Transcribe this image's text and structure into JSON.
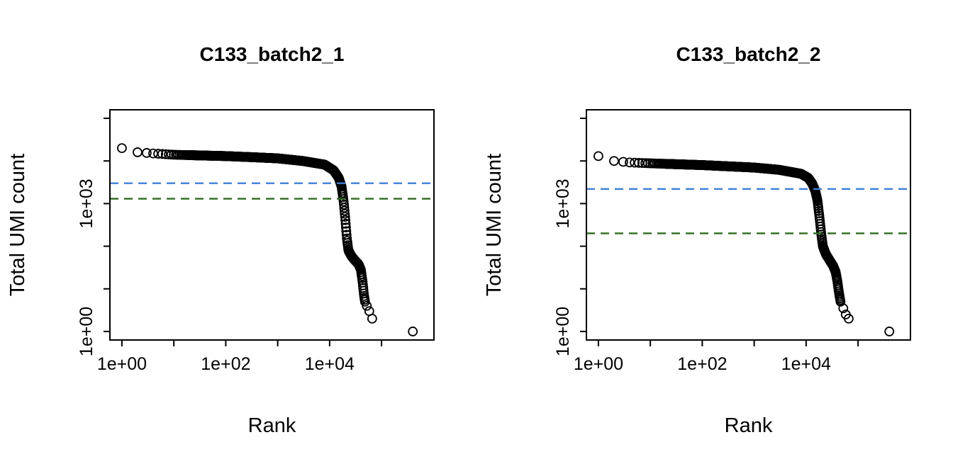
{
  "figure": {
    "background": "#ffffff",
    "description": "Two barcode-rank (knee) plots of Total UMI count versus Rank on log-log axes, each with a dashed blue knee threshold line and a dashed dark-green inflection threshold line."
  },
  "chart_data": [
    {
      "type": "scatter",
      "title": "C133_batch2_1",
      "xlabel": "Rank",
      "ylabel": "Total UMI count",
      "xscale": "log",
      "yscale": "log",
      "xlim": [
        1,
        600000
      ],
      "ylim": [
        1,
        100000
      ],
      "grid": false,
      "legend": "none",
      "x_tick_exponents": [
        0,
        1,
        2,
        3,
        4,
        5
      ],
      "y_tick_exponents": [
        0,
        1,
        2,
        3,
        4,
        5
      ],
      "x_tick_labels": [
        {
          "exp": 0,
          "label": "1e+00"
        },
        {
          "exp": 2,
          "label": "1e+02"
        },
        {
          "exp": 4,
          "label": "1e+04"
        }
      ],
      "y_tick_labels": [
        {
          "exp": 0,
          "label": "1e+00"
        },
        {
          "exp": 3,
          "label": "1e+03"
        }
      ],
      "point_style": {
        "shape": "open-circle",
        "color": "#000000"
      },
      "points": [
        [
          1,
          20000
        ],
        [
          2,
          16000
        ],
        [
          4,
          15000
        ],
        [
          10,
          14000
        ],
        [
          30,
          13500
        ],
        [
          100,
          13000
        ],
        [
          300,
          12300
        ],
        [
          1000,
          11500
        ],
        [
          3000,
          10000
        ],
        [
          8000,
          8200
        ],
        [
          12000,
          6000
        ],
        [
          15000,
          4000
        ],
        [
          17000,
          2500
        ],
        [
          18500,
          1200
        ],
        [
          20000,
          450
        ],
        [
          21500,
          150
        ],
        [
          23000,
          80
        ],
        [
          26000,
          60
        ],
        [
          30000,
          48
        ],
        [
          36000,
          38
        ],
        [
          40000,
          28
        ],
        [
          43000,
          15
        ],
        [
          46000,
          7
        ],
        [
          48000,
          5
        ]
      ],
      "tail_points": [
        [
          52000,
          4
        ],
        [
          58000,
          3
        ],
        [
          66000,
          2
        ],
        [
          400000,
          1
        ]
      ],
      "hlines": [
        {
          "name": "knee",
          "value": 3000,
          "color": "#3f7fd8",
          "style": "dashed"
        },
        {
          "name": "inflection",
          "value": 1300,
          "color": "#2d6a1f",
          "style": "dashed"
        }
      ]
    },
    {
      "type": "scatter",
      "title": "C133_batch2_2",
      "xlabel": "Rank",
      "ylabel": "Total UMI count",
      "xscale": "log",
      "yscale": "log",
      "xlim": [
        1,
        600000
      ],
      "ylim": [
        1,
        100000
      ],
      "grid": false,
      "legend": "none",
      "x_tick_exponents": [
        0,
        1,
        2,
        3,
        4,
        5
      ],
      "y_tick_exponents": [
        0,
        1,
        2,
        3,
        4,
        5
      ],
      "x_tick_labels": [
        {
          "exp": 0,
          "label": "1e+00"
        },
        {
          "exp": 2,
          "label": "1e+02"
        },
        {
          "exp": 4,
          "label": "1e+04"
        }
      ],
      "y_tick_labels": [
        {
          "exp": 0,
          "label": "1e+00"
        },
        {
          "exp": 3,
          "label": "1e+03"
        }
      ],
      "point_style": {
        "shape": "open-circle",
        "color": "#000000"
      },
      "points": [
        [
          1,
          13000
        ],
        [
          2,
          10000
        ],
        [
          4,
          9200
        ],
        [
          10,
          8800
        ],
        [
          30,
          8400
        ],
        [
          100,
          8000
        ],
        [
          300,
          7500
        ],
        [
          1000,
          7000
        ],
        [
          3000,
          6200
        ],
        [
          8000,
          5000
        ],
        [
          11000,
          4000
        ],
        [
          13000,
          3000
        ],
        [
          15000,
          2000
        ],
        [
          16500,
          1200
        ],
        [
          18000,
          500
        ],
        [
          19500,
          200
        ],
        [
          21000,
          100
        ],
        [
          24000,
          65
        ],
        [
          28000,
          48
        ],
        [
          33000,
          35
        ],
        [
          37000,
          25
        ],
        [
          40000,
          15
        ],
        [
          43000,
          8
        ],
        [
          46000,
          5
        ]
      ],
      "tail_points": [
        [
          52000,
          3.5
        ],
        [
          58000,
          2.5
        ],
        [
          66000,
          2
        ],
        [
          400000,
          1
        ]
      ],
      "hlines": [
        {
          "name": "knee",
          "value": 2200,
          "color": "#3f7fd8",
          "style": "dashed"
        },
        {
          "name": "inflection",
          "value": 200,
          "color": "#2d6a1f",
          "style": "dashed"
        }
      ]
    }
  ]
}
